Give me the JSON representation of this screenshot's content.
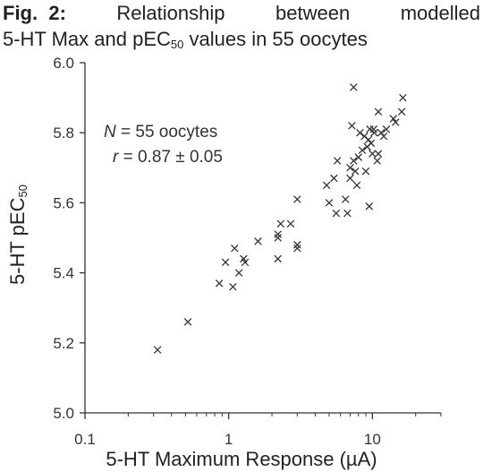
{
  "caption": {
    "fig": "Fig.",
    "num": "2:",
    "w1": "Relationship",
    "w2": "between",
    "w3": "modelled",
    "line2_pre": "5-HT Max and pEC",
    "line2_sub": "50",
    "line2_post": " values in 55 oocytes"
  },
  "annotation": {
    "n_label": "N",
    "n_text": " = 55 oocytes",
    "r_label": "r",
    "r_text": " = 0.87 ± 0.05"
  },
  "chart_data": {
    "type": "scatter",
    "marker": "x",
    "xscale": "log",
    "xlim": [
      0.1,
      30
    ],
    "ylim": [
      5.0,
      6.0
    ],
    "xticks": [
      0.1,
      1,
      10
    ],
    "xtick_labels": [
      "0.1",
      "1",
      "10"
    ],
    "yticks": [
      5.0,
      5.2,
      5.4,
      5.6,
      5.8,
      6.0
    ],
    "ytick_labels": [
      "5.0",
      "5.2",
      "5.4",
      "5.6",
      "5.8",
      "6.0"
    ],
    "xlabel": "5-HT Maximum Response (µA)",
    "ylabel_pre": "5-HT pEC",
    "ylabel_sub": "50",
    "grid": false,
    "color": "#333333",
    "points": [
      [
        0.32,
        5.18
      ],
      [
        0.52,
        5.26
      ],
      [
        0.86,
        5.37
      ],
      [
        0.95,
        5.43
      ],
      [
        1.07,
        5.36
      ],
      [
        1.1,
        5.47
      ],
      [
        1.18,
        5.4
      ],
      [
        1.27,
        5.44
      ],
      [
        1.3,
        5.43
      ],
      [
        1.6,
        5.49
      ],
      [
        2.2,
        5.44
      ],
      [
        2.2,
        5.5
      ],
      [
        2.2,
        5.51
      ],
      [
        2.3,
        5.54
      ],
      [
        2.7,
        5.54
      ],
      [
        3.0,
        5.47
      ],
      [
        3.0,
        5.48
      ],
      [
        3.0,
        5.61
      ],
      [
        4.8,
        5.65
      ],
      [
        5.0,
        5.6
      ],
      [
        5.4,
        5.67
      ],
      [
        5.6,
        5.57
      ],
      [
        5.7,
        5.72
      ],
      [
        6.5,
        5.61
      ],
      [
        6.7,
        5.57
      ],
      [
        7.0,
        5.67
      ],
      [
        7.0,
        5.7
      ],
      [
        7.4,
        5.93
      ],
      [
        7.2,
        5.82
      ],
      [
        7.4,
        5.72
      ],
      [
        7.6,
        5.69
      ],
      [
        7.8,
        5.65
      ],
      [
        8.0,
        5.73
      ],
      [
        8.2,
        5.8
      ],
      [
        8.5,
        5.75
      ],
      [
        8.8,
        5.79
      ],
      [
        9.0,
        5.69
      ],
      [
        9.2,
        5.76
      ],
      [
        9.4,
        5.78
      ],
      [
        9.5,
        5.59
      ],
      [
        9.6,
        5.81
      ],
      [
        9.8,
        5.77
      ],
      [
        10.0,
        5.74
      ],
      [
        10.2,
        5.81
      ],
      [
        10.3,
        5.8
      ],
      [
        10.8,
        5.72
      ],
      [
        11.0,
        5.74
      ],
      [
        11.0,
        5.86
      ],
      [
        11.5,
        5.8
      ],
      [
        12.0,
        5.79
      ],
      [
        12.5,
        5.81
      ],
      [
        14.0,
        5.84
      ],
      [
        14.5,
        5.83
      ],
      [
        16.0,
        5.86
      ],
      [
        16.3,
        5.9
      ]
    ]
  }
}
